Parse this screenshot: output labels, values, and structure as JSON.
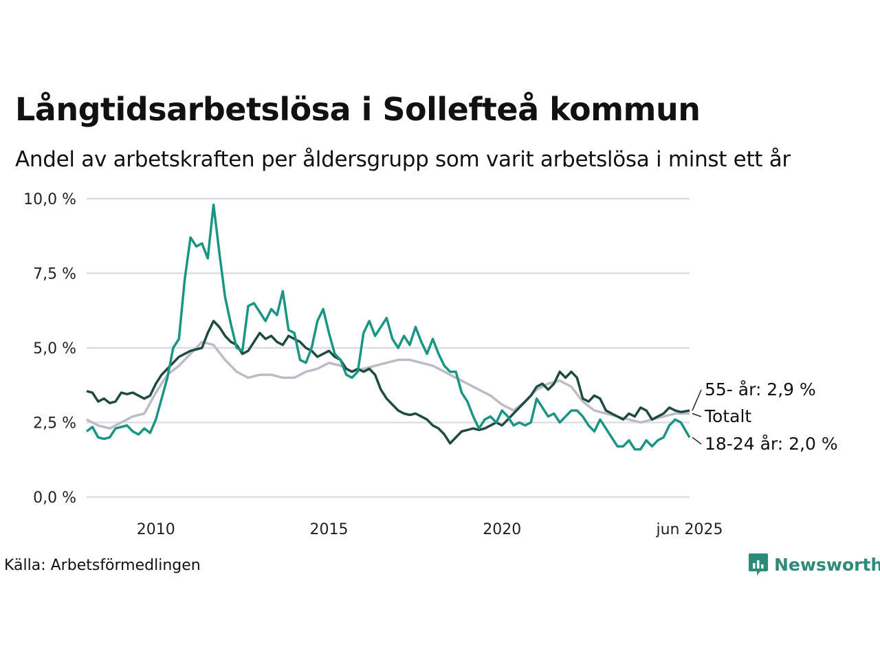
{
  "header": {
    "title": "Långtidsarbetslösa i Sollefteå kommun",
    "subtitle": "Andel av arbetskraften per åldersgrupp som varit arbetslösa i minst ett år"
  },
  "footer": {
    "source": "Källa: Arbetsförmedlingen",
    "brand": "Newsworthy"
  },
  "colors": {
    "total": "#bdbbc6",
    "age55": "#1f4a40",
    "age18_24": "#1a9484",
    "grid": "#dddde3",
    "brand": "#2e8b7a"
  },
  "chart_data": {
    "type": "line",
    "title": "Långtidsarbetslösa i Sollefteå kommun",
    "subtitle": "Andel av arbetskraften per åldersgrupp som varit arbetslösa i minst ett år",
    "ylim": [
      0,
      10
    ],
    "yticks": [
      0,
      2.5,
      5,
      7.5,
      10
    ],
    "ytick_labels": [
      "0,0 %",
      "2,5 %",
      "5,0 %",
      "7,5 %",
      "10,0 %"
    ],
    "xlim": [
      "2008-01",
      "2025-06"
    ],
    "xticks": [
      "2010-01",
      "2015-01",
      "2020-01",
      "2025-06"
    ],
    "xtick_labels": [
      "2010",
      "2015",
      "2020",
      "jun 2025"
    ],
    "grid": true,
    "legend": "end-labels-right",
    "series": [
      {
        "name": "Totalt",
        "end_label": "Totalt",
        "points": [
          [
            "2008-01",
            2.6
          ],
          [
            "2008-05",
            2.4
          ],
          [
            "2008-09",
            2.3
          ],
          [
            "2009-01",
            2.5
          ],
          [
            "2009-05",
            2.7
          ],
          [
            "2009-09",
            2.8
          ],
          [
            "2010-01",
            3.5
          ],
          [
            "2010-05",
            4.1
          ],
          [
            "2010-09",
            4.4
          ],
          [
            "2011-01",
            4.8
          ],
          [
            "2011-05",
            5.2
          ],
          [
            "2011-09",
            5.1
          ],
          [
            "2012-01",
            4.6
          ],
          [
            "2012-05",
            4.2
          ],
          [
            "2012-09",
            4.0
          ],
          [
            "2013-01",
            4.1
          ],
          [
            "2013-05",
            4.1
          ],
          [
            "2013-09",
            4.0
          ],
          [
            "2014-01",
            4.0
          ],
          [
            "2014-05",
            4.2
          ],
          [
            "2014-09",
            4.3
          ],
          [
            "2015-01",
            4.5
          ],
          [
            "2015-05",
            4.4
          ],
          [
            "2015-09",
            4.2
          ],
          [
            "2016-01",
            4.3
          ],
          [
            "2016-05",
            4.4
          ],
          [
            "2016-09",
            4.5
          ],
          [
            "2017-01",
            4.6
          ],
          [
            "2017-05",
            4.6
          ],
          [
            "2017-09",
            4.5
          ],
          [
            "2018-01",
            4.4
          ],
          [
            "2018-05",
            4.2
          ],
          [
            "2018-09",
            4.0
          ],
          [
            "2019-01",
            3.8
          ],
          [
            "2019-05",
            3.6
          ],
          [
            "2019-09",
            3.4
          ],
          [
            "2020-01",
            3.1
          ],
          [
            "2020-05",
            2.9
          ],
          [
            "2020-09",
            3.2
          ],
          [
            "2021-01",
            3.6
          ],
          [
            "2021-05",
            3.8
          ],
          [
            "2021-09",
            3.9
          ],
          [
            "2022-01",
            3.7
          ],
          [
            "2022-05",
            3.2
          ],
          [
            "2022-09",
            2.9
          ],
          [
            "2023-01",
            2.8
          ],
          [
            "2023-05",
            2.7
          ],
          [
            "2023-09",
            2.6
          ],
          [
            "2024-01",
            2.5
          ],
          [
            "2024-05",
            2.6
          ],
          [
            "2024-09",
            2.7
          ],
          [
            "2025-01",
            2.8
          ],
          [
            "2025-06",
            2.8
          ]
        ]
      },
      {
        "name": "55- år",
        "end_label": "55- år: 2,9 %",
        "points": [
          [
            "2008-01",
            3.55
          ],
          [
            "2008-03",
            3.5
          ],
          [
            "2008-05",
            3.2
          ],
          [
            "2008-07",
            3.3
          ],
          [
            "2008-09",
            3.15
          ],
          [
            "2008-11",
            3.2
          ],
          [
            "2009-01",
            3.5
          ],
          [
            "2009-03",
            3.45
          ],
          [
            "2009-05",
            3.5
          ],
          [
            "2009-07",
            3.4
          ],
          [
            "2009-09",
            3.3
          ],
          [
            "2009-11",
            3.4
          ],
          [
            "2010-01",
            3.8
          ],
          [
            "2010-03",
            4.1
          ],
          [
            "2010-05",
            4.3
          ],
          [
            "2010-07",
            4.5
          ],
          [
            "2010-09",
            4.7
          ],
          [
            "2010-11",
            4.8
          ],
          [
            "2011-01",
            4.9
          ],
          [
            "2011-03",
            4.95
          ],
          [
            "2011-05",
            5.0
          ],
          [
            "2011-07",
            5.5
          ],
          [
            "2011-09",
            5.9
          ],
          [
            "2011-11",
            5.7
          ],
          [
            "2012-01",
            5.4
          ],
          [
            "2012-03",
            5.2
          ],
          [
            "2012-05",
            5.1
          ],
          [
            "2012-07",
            4.8
          ],
          [
            "2012-09",
            4.9
          ],
          [
            "2012-11",
            5.2
          ],
          [
            "2013-01",
            5.5
          ],
          [
            "2013-03",
            5.3
          ],
          [
            "2013-05",
            5.4
          ],
          [
            "2013-07",
            5.2
          ],
          [
            "2013-09",
            5.1
          ],
          [
            "2013-11",
            5.4
          ],
          [
            "2014-01",
            5.3
          ],
          [
            "2014-03",
            5.2
          ],
          [
            "2014-05",
            5.0
          ],
          [
            "2014-07",
            4.9
          ],
          [
            "2014-09",
            4.7
          ],
          [
            "2014-11",
            4.8
          ],
          [
            "2015-01",
            4.9
          ],
          [
            "2015-03",
            4.7
          ],
          [
            "2015-05",
            4.6
          ],
          [
            "2015-07",
            4.3
          ],
          [
            "2015-09",
            4.2
          ],
          [
            "2015-11",
            4.3
          ],
          [
            "2016-01",
            4.2
          ],
          [
            "2016-03",
            4.3
          ],
          [
            "2016-05",
            4.1
          ],
          [
            "2016-07",
            3.6
          ],
          [
            "2016-09",
            3.3
          ],
          [
            "2016-11",
            3.1
          ],
          [
            "2017-01",
            2.9
          ],
          [
            "2017-03",
            2.8
          ],
          [
            "2017-05",
            2.75
          ],
          [
            "2017-07",
            2.8
          ],
          [
            "2017-09",
            2.7
          ],
          [
            "2017-11",
            2.6
          ],
          [
            "2018-01",
            2.4
          ],
          [
            "2018-03",
            2.3
          ],
          [
            "2018-05",
            2.1
          ],
          [
            "2018-07",
            1.8
          ],
          [
            "2018-09",
            2.0
          ],
          [
            "2018-11",
            2.2
          ],
          [
            "2019-01",
            2.25
          ],
          [
            "2019-03",
            2.3
          ],
          [
            "2019-05",
            2.25
          ],
          [
            "2019-07",
            2.3
          ],
          [
            "2019-09",
            2.4
          ],
          [
            "2019-11",
            2.5
          ],
          [
            "2020-01",
            2.4
          ],
          [
            "2020-03",
            2.6
          ],
          [
            "2020-05",
            2.8
          ],
          [
            "2020-07",
            3.0
          ],
          [
            "2020-09",
            3.2
          ],
          [
            "2020-11",
            3.4
          ],
          [
            "2021-01",
            3.7
          ],
          [
            "2021-03",
            3.8
          ],
          [
            "2021-05",
            3.6
          ],
          [
            "2021-07",
            3.8
          ],
          [
            "2021-09",
            4.2
          ],
          [
            "2021-11",
            4.0
          ],
          [
            "2022-01",
            4.2
          ],
          [
            "2022-03",
            4.0
          ],
          [
            "2022-05",
            3.3
          ],
          [
            "2022-07",
            3.2
          ],
          [
            "2022-09",
            3.4
          ],
          [
            "2022-11",
            3.3
          ],
          [
            "2023-01",
            2.9
          ],
          [
            "2023-03",
            2.8
          ],
          [
            "2023-05",
            2.7
          ],
          [
            "2023-07",
            2.6
          ],
          [
            "2023-09",
            2.8
          ],
          [
            "2023-11",
            2.7
          ],
          [
            "2024-01",
            3.0
          ],
          [
            "2024-03",
            2.9
          ],
          [
            "2024-05",
            2.6
          ],
          [
            "2024-07",
            2.7
          ],
          [
            "2024-09",
            2.8
          ],
          [
            "2024-11",
            3.0
          ],
          [
            "2025-01",
            2.9
          ],
          [
            "2025-03",
            2.85
          ],
          [
            "2025-06",
            2.9
          ]
        ]
      },
      {
        "name": "18-24 år",
        "end_label": "18-24 år: 2,0 %",
        "points": [
          [
            "2008-01",
            2.2
          ],
          [
            "2008-03",
            2.35
          ],
          [
            "2008-05",
            2.0
          ],
          [
            "2008-07",
            1.95
          ],
          [
            "2008-09",
            2.0
          ],
          [
            "2008-11",
            2.3
          ],
          [
            "2009-01",
            2.35
          ],
          [
            "2009-03",
            2.4
          ],
          [
            "2009-05",
            2.2
          ],
          [
            "2009-07",
            2.1
          ],
          [
            "2009-09",
            2.3
          ],
          [
            "2009-11",
            2.15
          ],
          [
            "2010-01",
            2.6
          ],
          [
            "2010-03",
            3.3
          ],
          [
            "2010-05",
            4.0
          ],
          [
            "2010-07",
            5.0
          ],
          [
            "2010-09",
            5.3
          ],
          [
            "2010-11",
            7.3
          ],
          [
            "2011-01",
            8.7
          ],
          [
            "2011-03",
            8.4
          ],
          [
            "2011-05",
            8.5
          ],
          [
            "2011-07",
            8.0
          ],
          [
            "2011-09",
            9.8
          ],
          [
            "2011-11",
            8.2
          ],
          [
            "2012-01",
            6.7
          ],
          [
            "2012-03",
            5.8
          ],
          [
            "2012-05",
            5.0
          ],
          [
            "2012-07",
            4.9
          ],
          [
            "2012-09",
            6.4
          ],
          [
            "2012-11",
            6.5
          ],
          [
            "2013-01",
            6.2
          ],
          [
            "2013-03",
            5.9
          ],
          [
            "2013-05",
            6.3
          ],
          [
            "2013-07",
            6.1
          ],
          [
            "2013-09",
            6.9
          ],
          [
            "2013-11",
            5.6
          ],
          [
            "2014-01",
            5.5
          ],
          [
            "2014-03",
            4.6
          ],
          [
            "2014-05",
            4.5
          ],
          [
            "2014-07",
            5.0
          ],
          [
            "2014-09",
            5.9
          ],
          [
            "2014-11",
            6.3
          ],
          [
            "2015-01",
            5.5
          ],
          [
            "2015-03",
            4.8
          ],
          [
            "2015-05",
            4.6
          ],
          [
            "2015-07",
            4.1
          ],
          [
            "2015-09",
            4.0
          ],
          [
            "2015-11",
            4.2
          ],
          [
            "2016-01",
            5.5
          ],
          [
            "2016-03",
            5.9
          ],
          [
            "2016-05",
            5.4
          ],
          [
            "2016-07",
            5.7
          ],
          [
            "2016-09",
            6.0
          ],
          [
            "2016-11",
            5.3
          ],
          [
            "2017-01",
            5.0
          ],
          [
            "2017-03",
            5.4
          ],
          [
            "2017-05",
            5.1
          ],
          [
            "2017-07",
            5.7
          ],
          [
            "2017-09",
            5.2
          ],
          [
            "2017-11",
            4.8
          ],
          [
            "2018-01",
            5.3
          ],
          [
            "2018-03",
            4.8
          ],
          [
            "2018-05",
            4.4
          ],
          [
            "2018-07",
            4.2
          ],
          [
            "2018-09",
            4.2
          ],
          [
            "2018-11",
            3.5
          ],
          [
            "2019-01",
            3.2
          ],
          [
            "2019-03",
            2.7
          ],
          [
            "2019-05",
            2.3
          ],
          [
            "2019-07",
            2.6
          ],
          [
            "2019-09",
            2.7
          ],
          [
            "2019-11",
            2.5
          ],
          [
            "2020-01",
            2.9
          ],
          [
            "2020-03",
            2.7
          ],
          [
            "2020-05",
            2.4
          ],
          [
            "2020-07",
            2.5
          ],
          [
            "2020-09",
            2.4
          ],
          [
            "2020-11",
            2.5
          ],
          [
            "2021-01",
            3.3
          ],
          [
            "2021-03",
            3.0
          ],
          [
            "2021-05",
            2.7
          ],
          [
            "2021-07",
            2.8
          ],
          [
            "2021-09",
            2.5
          ],
          [
            "2021-11",
            2.7
          ],
          [
            "2022-01",
            2.9
          ],
          [
            "2022-03",
            2.9
          ],
          [
            "2022-05",
            2.7
          ],
          [
            "2022-07",
            2.4
          ],
          [
            "2022-09",
            2.2
          ],
          [
            "2022-11",
            2.6
          ],
          [
            "2023-01",
            2.3
          ],
          [
            "2023-03",
            2.0
          ],
          [
            "2023-05",
            1.7
          ],
          [
            "2023-07",
            1.7
          ],
          [
            "2023-09",
            1.9
          ],
          [
            "2023-11",
            1.6
          ],
          [
            "2024-01",
            1.6
          ],
          [
            "2024-03",
            1.9
          ],
          [
            "2024-05",
            1.7
          ],
          [
            "2024-07",
            1.9
          ],
          [
            "2024-09",
            2.0
          ],
          [
            "2024-11",
            2.4
          ],
          [
            "2025-01",
            2.6
          ],
          [
            "2025-03",
            2.5
          ],
          [
            "2025-06",
            2.0
          ]
        ]
      }
    ]
  }
}
